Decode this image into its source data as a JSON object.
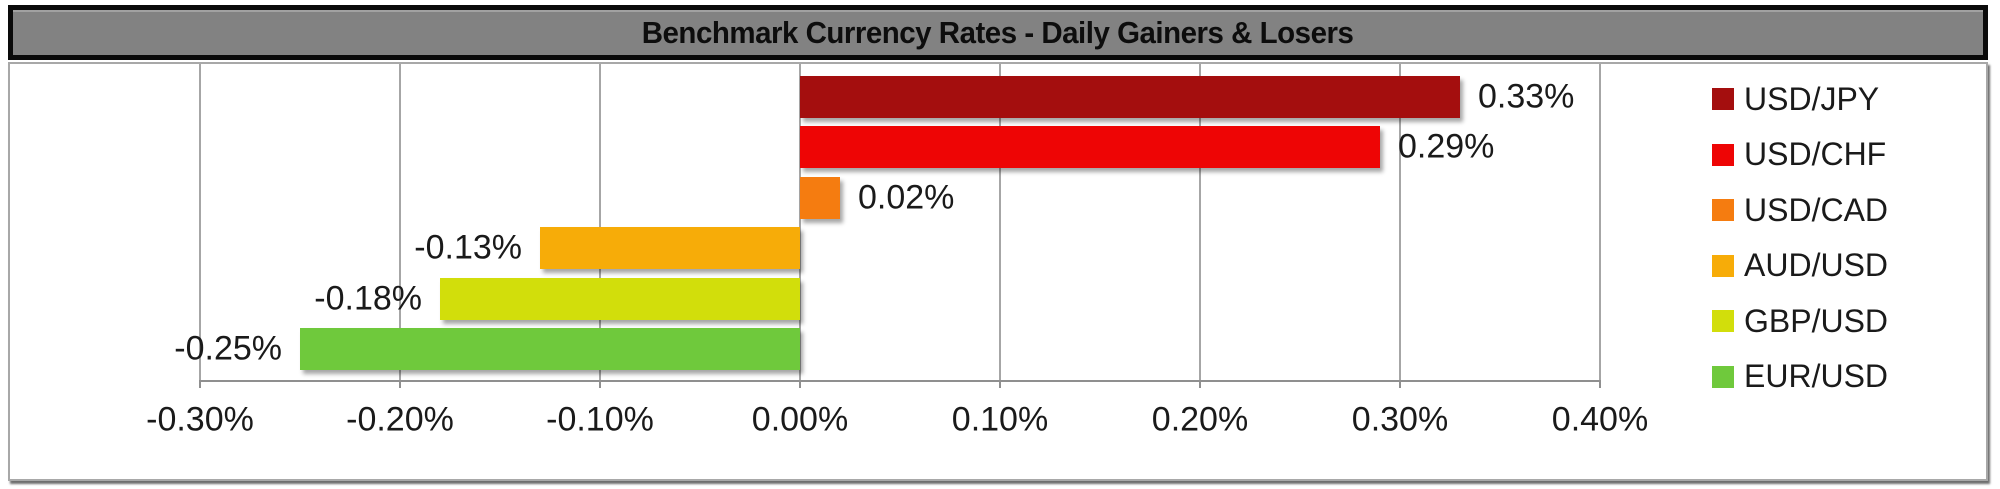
{
  "title": {
    "text": "Benchmark Currency Rates - Daily Gainers & Losers"
  },
  "chart_data": {
    "type": "bar",
    "orientation": "horizontal",
    "title": "Benchmark Currency Rates - Daily Gainers & Losers",
    "categories": [
      "USD/JPY",
      "USD/CHF",
      "USD/CAD",
      "AUD/USD",
      "GBP/USD",
      "EUR/USD"
    ],
    "values": [
      0.33,
      0.29,
      0.02,
      -0.13,
      -0.18,
      -0.25
    ],
    "value_labels": [
      "0.33%",
      "0.29%",
      "0.02%",
      "-0.13%",
      "-0.18%",
      "-0.25%"
    ],
    "bar_colors": [
      "#a40e0e",
      "#ee0505",
      "#f57c10",
      "#f7ac08",
      "#d2de0b",
      "#6fc93c"
    ],
    "xlabel": "",
    "ylabel": "",
    "xlim": [
      -0.3,
      0.4
    ],
    "x_ticks": [
      -0.3,
      -0.2,
      -0.1,
      0.0,
      0.1,
      0.2,
      0.3,
      0.4
    ],
    "x_tick_labels": [
      "-0.30%",
      "-0.20%",
      "-0.10%",
      "0.00%",
      "0.10%",
      "0.20%",
      "0.30%",
      "0.40%"
    ],
    "grid": true,
    "legend_position": "right",
    "legend": [
      {
        "label": "USD/JPY",
        "color": "#a40e0e"
      },
      {
        "label": "USD/CHF",
        "color": "#ee0505"
      },
      {
        "label": "USD/CAD",
        "color": "#f57c10"
      },
      {
        "label": "AUD/USD",
        "color": "#f7ac08"
      },
      {
        "label": "GBP/USD",
        "color": "#d2de0b"
      },
      {
        "label": "EUR/USD",
        "color": "#6fc93c"
      }
    ]
  },
  "colors": {
    "title_bg": "#828282",
    "title_border": "#0a0a0a",
    "grid_line": "#a6a6a6",
    "axis_line": "#8f8f8f",
    "chart_border": "#a8a8a8",
    "label_text": "#1a1a1a"
  }
}
